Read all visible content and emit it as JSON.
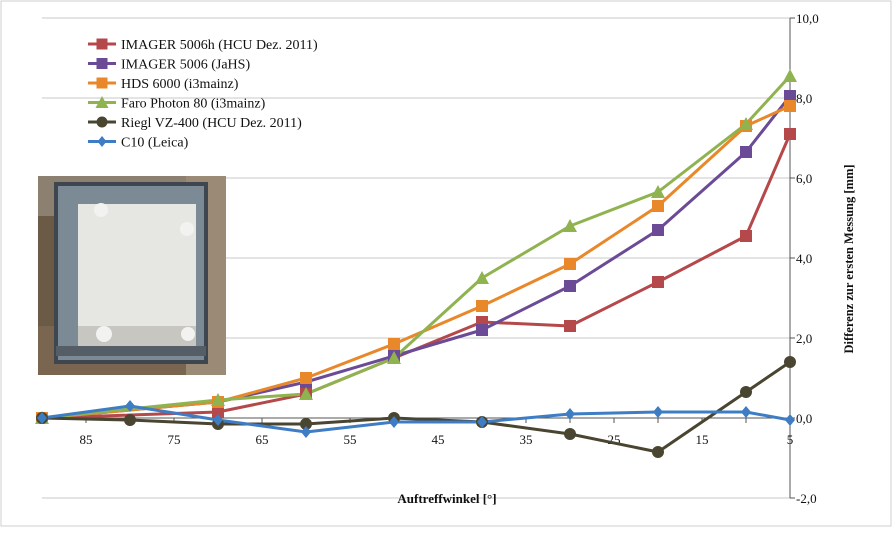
{
  "chart_data": {
    "type": "line",
    "xlabel": "Auftreffwinkel  [°]",
    "ylabel": "Differenz zur ersten Messung [mm]",
    "xlim": [
      90,
      5
    ],
    "ylim": [
      -2,
      10
    ],
    "x_ticks": [
      "85",
      "75",
      "65",
      "55",
      "45",
      "35",
      "25",
      "15",
      "5"
    ],
    "y_ticks": [
      "-2,0",
      "0,0",
      "2,0",
      "4,0",
      "6,0",
      "8,0",
      "10,0"
    ],
    "legend_position": "top-left",
    "grid": "horizontal",
    "series": [
      {
        "name": "IMAGER 5006h (HCU Dez. 2011)",
        "color": "#b5484a",
        "marker": "square",
        "x": [
          90,
          70,
          60,
          50,
          40,
          30,
          20,
          10,
          5
        ],
        "y": [
          0.0,
          0.15,
          0.6,
          1.5,
          2.4,
          2.3,
          3.4,
          4.55,
          7.1
        ]
      },
      {
        "name": "IMAGER 5006 (JaHS)",
        "color": "#6b4a96",
        "marker": "square",
        "x": [
          90,
          70,
          60,
          50,
          40,
          30,
          20,
          10,
          5
        ],
        "y": [
          0.0,
          0.4,
          0.9,
          1.55,
          2.2,
          3.3,
          4.7,
          6.65,
          8.05
        ]
      },
      {
        "name": "HDS 6000 (i3mainz)",
        "color": "#e8882a",
        "marker": "square",
        "x": [
          90,
          70,
          60,
          50,
          40,
          30,
          20,
          10,
          5
        ],
        "y": [
          0.0,
          0.4,
          1.0,
          1.85,
          2.8,
          3.85,
          5.3,
          7.3,
          7.8
        ]
      },
      {
        "name": "Faro Photon 80 (i3mainz)",
        "color": "#8fb34f",
        "marker": "triangle",
        "x": [
          90,
          70,
          60,
          50,
          40,
          30,
          20,
          10,
          5
        ],
        "y": [
          0.0,
          0.45,
          0.6,
          1.5,
          3.5,
          4.8,
          5.65,
          7.35,
          8.55
        ]
      },
      {
        "name": "Riegl VZ-400 (HCU Dez. 2011)",
        "color": "#4a4530",
        "marker": "circle",
        "x": [
          90,
          80,
          70,
          60,
          50,
          40,
          30,
          20,
          10,
          5
        ],
        "y": [
          0.0,
          -0.05,
          -0.15,
          -0.15,
          0.0,
          -0.1,
          -0.4,
          -0.85,
          0.65,
          1.4
        ]
      },
      {
        "name": "C10 (Leica)",
        "color": "#3e7cc4",
        "marker": "diamond",
        "x": [
          90,
          80,
          70,
          60,
          50,
          40,
          30,
          20,
          10,
          5
        ],
        "y": [
          0.0,
          0.3,
          -0.05,
          -0.35,
          -0.1,
          -0.1,
          0.1,
          0.15,
          0.15,
          -0.05
        ]
      }
    ]
  }
}
